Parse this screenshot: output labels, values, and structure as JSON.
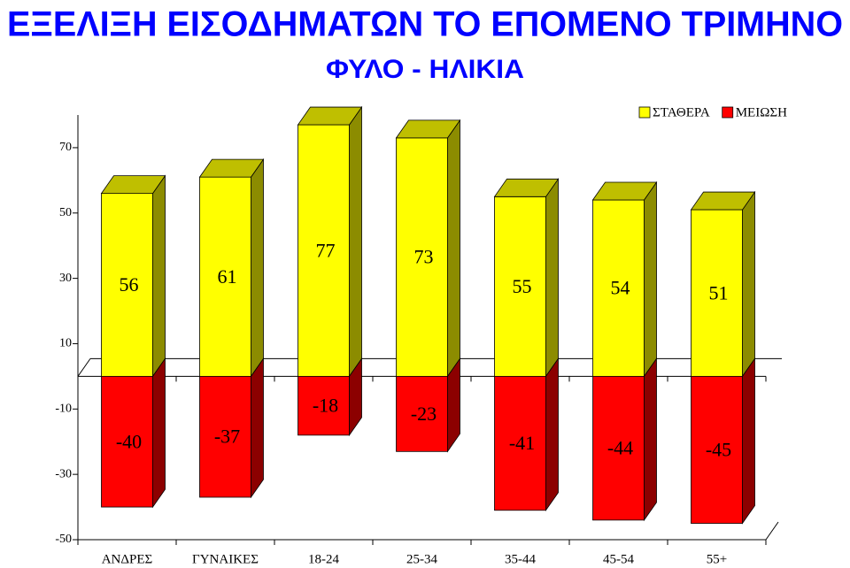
{
  "chart_data": {
    "type": "bar3d",
    "title": "ΕΞΕΛΙΞΗ ΕΙΣΟΔΗΜΑΤΩΝ ΤΟ ΕΠΟΜΕΝΟ ΤΡΙΜΗΝΟ",
    "subtitle": "ΦΥΛΟ - ΗΛΙΚΙΑ",
    "categories": [
      "ΑΝΔΡΕΣ",
      "ΓΥΝΑΙΚΕΣ",
      "18-24",
      "25-34",
      "35-44",
      "45-54",
      "55+"
    ],
    "series": [
      {
        "name": "ΣΤΑΘΕΡΑ",
        "color": "#ffff00",
        "values": [
          56,
          61,
          77,
          73,
          55,
          54,
          51
        ]
      },
      {
        "name": "ΜΕΙΩΣΗ",
        "color": "#ff0000",
        "values": [
          -40,
          -37,
          -18,
          -23,
          -41,
          -44,
          -45
        ]
      }
    ],
    "ylim": [
      -50,
      80
    ],
    "yticks": [
      70,
      50,
      30,
      10,
      -10,
      -30,
      -50
    ],
    "legend": "top-right"
  }
}
